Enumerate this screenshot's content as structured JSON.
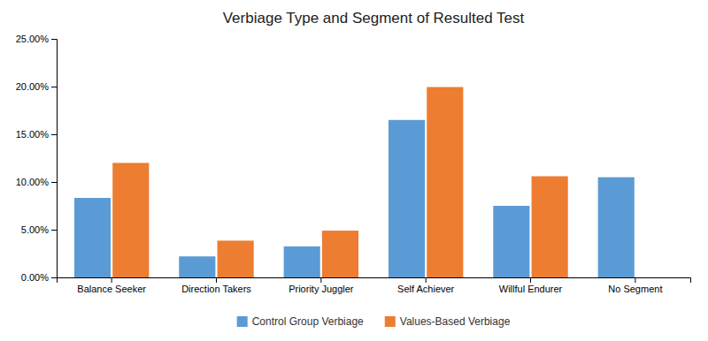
{
  "chart_data": {
    "type": "bar",
    "title": "Verbiage Type and Segment of Resulted Test",
    "categories": [
      "Balance Seeker",
      "Direction Takers",
      "Priority Juggler",
      "Self Achiever",
      "Willful Endurer",
      "No Segment"
    ],
    "series": [
      {
        "name": "Control Group Verbiage",
        "color": "#5B9BD5",
        "values": [
          0.0833,
          0.022,
          0.0325,
          0.165,
          0.075,
          0.105
        ]
      },
      {
        "name": "Values-Based Verbiage",
        "color": "#ED7D31",
        "values": [
          0.12,
          0.0385,
          0.049,
          0.1995,
          0.106,
          0.0
        ]
      }
    ],
    "ylim": [
      0,
      0.25
    ],
    "yticks": [
      {
        "value": 0.0,
        "label": "0.00%"
      },
      {
        "value": 0.05,
        "label": "5.00%"
      },
      {
        "value": 0.1,
        "label": "10.00%"
      },
      {
        "value": 0.15,
        "label": "15.00%"
      },
      {
        "value": 0.2,
        "label": "20.00%"
      },
      {
        "value": 0.25,
        "label": "25.00%"
      }
    ],
    "grid": false,
    "legend": "bottom"
  }
}
